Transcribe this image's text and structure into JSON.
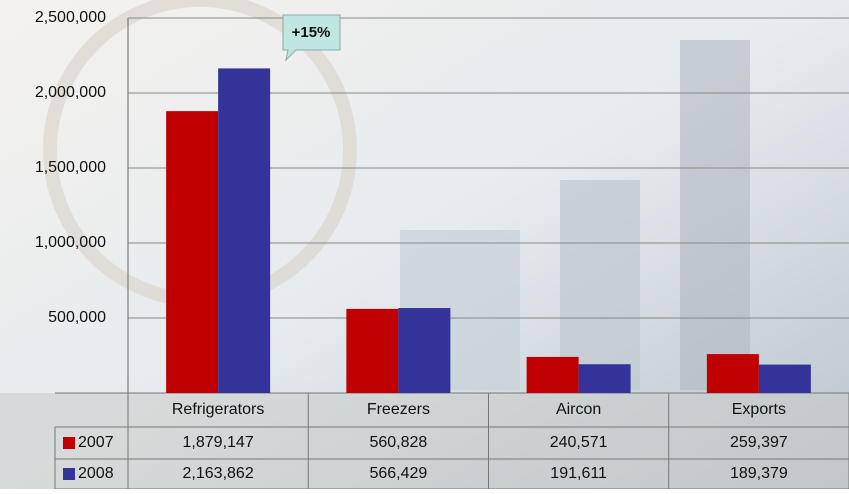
{
  "chart_data": {
    "type": "bar",
    "categories": [
      "Refrigerators",
      "Freezers",
      "Aircon",
      "Exports"
    ],
    "series": [
      {
        "name": "2007",
        "color": "#c00000",
        "values": [
          1879147,
          560828,
          240571,
          259397
        ],
        "value_labels": [
          "1,879,147",
          "560,828",
          "240,571",
          "259,397"
        ]
      },
      {
        "name": "2008",
        "color": "#333399",
        "values": [
          2163862,
          566429,
          191611,
          189379
        ],
        "value_labels": [
          "2,163,862",
          "566,429",
          "191,611",
          "189,379"
        ]
      }
    ],
    "ylim": [
      0,
      2500000
    ],
    "yticks": [
      {
        "value": 500000,
        "label": "500,000"
      },
      {
        "value": 1000000,
        "label": "1,000,000"
      },
      {
        "value": 1500000,
        "label": "1,500,000"
      },
      {
        "value": 2000000,
        "label": "2,000,000"
      },
      {
        "value": 2500000,
        "label": "2,500,000"
      }
    ],
    "grid": true,
    "annotation": "+15%"
  }
}
